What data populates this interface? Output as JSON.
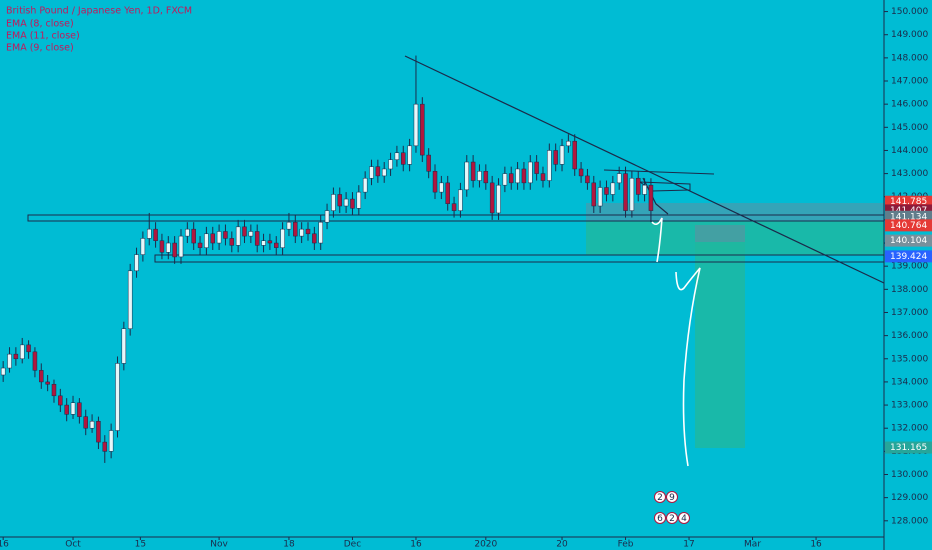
{
  "chart_data": {
    "type": "candlestick",
    "title": "British Pound / Japanese Yen, 1D, FXCM",
    "indicators": [
      "EMA (8, close)",
      "EMA (11, close)",
      "EMA (9, close)"
    ],
    "up_color": "#e6f7fa",
    "down_color": "#b0173f",
    "wick_color": "#1b2a4a",
    "ylim": [
      127.3,
      150.5
    ],
    "yticks": [
      {
        "value": 150,
        "label": "150.000"
      },
      {
        "value": 149,
        "label": "149.000"
      },
      {
        "value": 148,
        "label": "148.000"
      },
      {
        "value": 147,
        "label": "147.000"
      },
      {
        "value": 146,
        "label": "146.000"
      },
      {
        "value": 145,
        "label": "145.000"
      },
      {
        "value": 144,
        "label": "144.000"
      },
      {
        "value": 143,
        "label": "143.000"
      },
      {
        "value": 142,
        "label": "142.000"
      },
      {
        "value": 141,
        "label": "141.000"
      },
      {
        "value": 140,
        "label": "140.000"
      },
      {
        "value": 139,
        "label": "139.000"
      },
      {
        "value": 138,
        "label": "138.000"
      },
      {
        "value": 137,
        "label": "137.000"
      },
      {
        "value": 136,
        "label": "136.000"
      },
      {
        "value": 135,
        "label": "135.000"
      },
      {
        "value": 134,
        "label": "134.000"
      },
      {
        "value": 133,
        "label": "133.000"
      },
      {
        "value": 132,
        "label": "132.000"
      },
      {
        "value": 131,
        "label": "131.000"
      },
      {
        "value": 130,
        "label": "130.000"
      },
      {
        "value": 129,
        "label": "129.000"
      },
      {
        "value": 128,
        "label": "128.000"
      }
    ],
    "xlim": [
      -0.5,
      138.7
    ],
    "xticks": [
      {
        "value": 0,
        "label": "16"
      },
      {
        "value": 11,
        "label": "Oct"
      },
      {
        "value": 21.6,
        "label": "15"
      },
      {
        "value": 34,
        "label": "Nov"
      },
      {
        "value": 45,
        "label": "18"
      },
      {
        "value": 55,
        "label": "Dec"
      },
      {
        "value": 65,
        "label": "16"
      },
      {
        "value": 76,
        "label": "2020"
      },
      {
        "value": 88,
        "label": "20"
      },
      {
        "value": 98,
        "label": "Feb"
      },
      {
        "value": 108,
        "label": "17"
      },
      {
        "value": 118,
        "label": "Mar"
      },
      {
        "value": 128,
        "label": "16"
      }
    ],
    "price_labels": [
      {
        "value": 141.785,
        "label": "141.785",
        "color": "#e53935"
      },
      {
        "value": 141.407,
        "label": "141.407",
        "color": "#8e1b3a"
      },
      {
        "value": 141.134,
        "label": "141.134",
        "color": "#607d8b"
      },
      {
        "value": 140.764,
        "label": "140.764",
        "color": "#e53935"
      },
      {
        "value": 140.104,
        "label": "140.104",
        "color": "#78909c"
      },
      {
        "value": 139.424,
        "label": "139.424",
        "color": "#2962ff"
      },
      {
        "value": 131.165,
        "label": "131.165",
        "color": "#26a69a"
      }
    ],
    "events": [
      "2",
      "9",
      "6",
      "2",
      "4"
    ],
    "candles": [
      [
        134.3,
        134.9,
        134.0,
        134.6
      ],
      [
        134.6,
        135.5,
        134.4,
        135.2
      ],
      [
        135.2,
        135.5,
        134.7,
        135.0
      ],
      [
        135.0,
        135.9,
        134.8,
        135.6
      ],
      [
        135.6,
        135.8,
        135.0,
        135.3
      ],
      [
        135.3,
        135.5,
        134.2,
        134.5
      ],
      [
        134.5,
        134.8,
        133.7,
        134.0
      ],
      [
        134.0,
        134.3,
        133.6,
        133.9
      ],
      [
        133.9,
        134.1,
        133.1,
        133.4
      ],
      [
        133.4,
        133.7,
        132.7,
        133.0
      ],
      [
        133.0,
        133.3,
        132.3,
        132.6
      ],
      [
        132.6,
        133.4,
        132.4,
        133.1
      ],
      [
        133.1,
        133.3,
        132.2,
        132.5
      ],
      [
        132.5,
        132.8,
        131.7,
        132.0
      ],
      [
        132.0,
        132.6,
        131.8,
        132.3
      ],
      [
        132.3,
        132.5,
        131.1,
        131.4
      ],
      [
        131.4,
        131.7,
        130.5,
        131.0
      ],
      [
        131.0,
        132.2,
        130.7,
        131.9
      ],
      [
        131.9,
        135.1,
        131.6,
        134.8
      ],
      [
        134.8,
        136.6,
        134.5,
        136.3
      ],
      [
        136.3,
        139.1,
        136.0,
        138.8
      ],
      [
        138.8,
        139.8,
        138.5,
        139.5
      ],
      [
        139.5,
        140.5,
        139.2,
        140.2
      ],
      [
        140.2,
        141.3,
        139.9,
        140.6
      ],
      [
        140.6,
        140.9,
        139.8,
        140.1
      ],
      [
        140.1,
        140.4,
        139.3,
        139.6
      ],
      [
        139.6,
        140.3,
        139.3,
        140.0
      ],
      [
        140.0,
        140.3,
        139.1,
        139.4
      ],
      [
        139.4,
        140.6,
        139.1,
        140.3
      ],
      [
        140.3,
        140.9,
        140.0,
        140.6
      ],
      [
        140.6,
        140.9,
        139.7,
        140.0
      ],
      [
        140.0,
        140.3,
        139.5,
        139.8
      ],
      [
        139.8,
        140.7,
        139.5,
        140.4
      ],
      [
        140.4,
        140.7,
        139.7,
        140.0
      ],
      [
        140.0,
        140.8,
        139.7,
        140.5
      ],
      [
        140.5,
        140.8,
        139.9,
        140.2
      ],
      [
        140.2,
        140.5,
        139.6,
        139.9
      ],
      [
        139.9,
        141.0,
        139.6,
        140.7
      ],
      [
        140.7,
        141.0,
        140.0,
        140.3
      ],
      [
        140.3,
        140.8,
        140.0,
        140.5
      ],
      [
        140.5,
        140.8,
        139.6,
        139.9
      ],
      [
        139.9,
        140.4,
        139.6,
        140.1
      ],
      [
        140.1,
        140.4,
        139.7,
        140.0
      ],
      [
        140.0,
        140.3,
        139.5,
        139.8
      ],
      [
        139.8,
        140.9,
        139.5,
        140.6
      ],
      [
        140.6,
        141.3,
        140.3,
        140.9
      ],
      [
        140.9,
        141.2,
        140.0,
        140.3
      ],
      [
        140.3,
        140.9,
        140.0,
        140.6
      ],
      [
        140.6,
        140.9,
        140.1,
        140.4
      ],
      [
        140.4,
        140.7,
        139.7,
        140.0
      ],
      [
        140.0,
        141.2,
        139.7,
        140.9
      ],
      [
        140.9,
        141.7,
        140.6,
        141.4
      ],
      [
        141.4,
        142.4,
        141.1,
        142.1
      ],
      [
        142.1,
        142.4,
        141.3,
        141.6
      ],
      [
        141.6,
        142.2,
        141.3,
        141.9
      ],
      [
        141.9,
        142.2,
        141.2,
        141.5
      ],
      [
        141.5,
        142.5,
        141.2,
        142.2
      ],
      [
        142.2,
        143.1,
        141.9,
        142.8
      ],
      [
        142.8,
        143.6,
        142.5,
        143.3
      ],
      [
        143.3,
        143.6,
        142.6,
        142.9
      ],
      [
        142.9,
        143.5,
        142.6,
        143.2
      ],
      [
        143.2,
        143.9,
        142.9,
        143.6
      ],
      [
        143.6,
        144.2,
        143.3,
        143.9
      ],
      [
        143.9,
        144.2,
        143.1,
        143.4
      ],
      [
        143.4,
        144.5,
        143.1,
        144.2
      ],
      [
        144.2,
        148.1,
        143.9,
        146.0
      ],
      [
        146.0,
        146.3,
        143.5,
        143.8
      ],
      [
        143.8,
        144.1,
        142.8,
        143.1
      ],
      [
        143.1,
        143.4,
        141.9,
        142.2
      ],
      [
        142.2,
        142.9,
        141.9,
        142.6
      ],
      [
        142.6,
        142.9,
        141.4,
        141.7
      ],
      [
        141.7,
        142.0,
        141.1,
        141.4
      ],
      [
        141.4,
        142.6,
        141.1,
        142.3
      ],
      [
        142.3,
        143.8,
        142.0,
        143.5
      ],
      [
        143.5,
        143.8,
        142.4,
        142.7
      ],
      [
        142.7,
        143.4,
        142.4,
        143.1
      ],
      [
        143.1,
        143.4,
        142.3,
        142.6
      ],
      [
        142.6,
        142.9,
        141.0,
        141.3
      ],
      [
        141.3,
        142.8,
        141.0,
        142.5
      ],
      [
        142.5,
        143.3,
        142.2,
        143.0
      ],
      [
        143.0,
        143.3,
        142.3,
        142.6
      ],
      [
        142.6,
        143.5,
        142.3,
        143.2
      ],
      [
        143.2,
        143.5,
        142.3,
        142.6
      ],
      [
        142.6,
        143.8,
        142.3,
        143.5
      ],
      [
        143.5,
        143.8,
        142.7,
        143.0
      ],
      [
        143.0,
        143.3,
        142.4,
        142.7
      ],
      [
        142.7,
        144.3,
        142.4,
        144.0
      ],
      [
        144.0,
        144.3,
        143.1,
        143.4
      ],
      [
        143.4,
        144.5,
        143.1,
        144.2
      ],
      [
        144.2,
        144.7,
        143.9,
        144.4
      ],
      [
        144.4,
        144.7,
        142.9,
        143.2
      ],
      [
        143.2,
        143.5,
        142.6,
        142.9
      ],
      [
        142.9,
        143.2,
        142.3,
        142.6
      ],
      [
        142.6,
        142.9,
        141.3,
        141.6
      ],
      [
        141.6,
        142.7,
        141.3,
        142.4
      ],
      [
        142.4,
        142.7,
        141.8,
        142.1
      ],
      [
        142.1,
        142.9,
        141.8,
        142.6
      ],
      [
        142.6,
        143.3,
        142.3,
        143.0
      ],
      [
        143.0,
        143.3,
        141.1,
        141.4
      ],
      [
        141.4,
        143.1,
        141.1,
        142.8
      ],
      [
        142.8,
        143.1,
        141.8,
        142.1
      ],
      [
        142.1,
        142.8,
        141.8,
        142.5
      ],
      [
        142.5,
        142.8,
        140.9,
        141.4
      ]
    ]
  }
}
